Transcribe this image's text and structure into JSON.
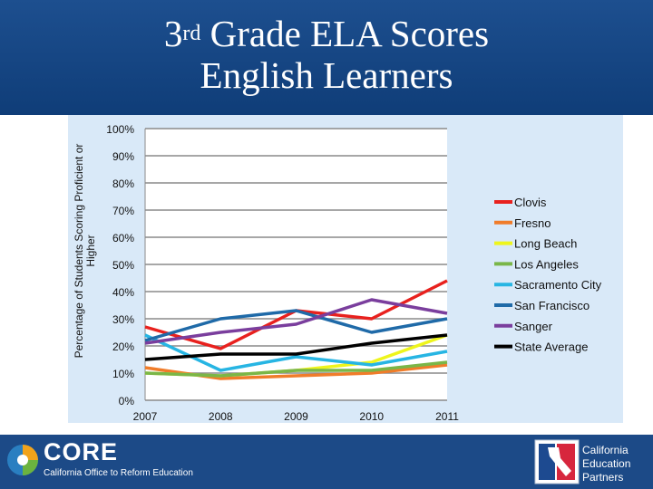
{
  "title": {
    "line1_prefix": "3",
    "line1_sup": "rd",
    "line1_suffix": " Grade ELA Scores",
    "line2": "English Learners"
  },
  "footer": {
    "core_name": "CORE",
    "core_tagline": "California Office to Reform Education",
    "partner_lines": [
      "California",
      "Education",
      "Partners"
    ]
  },
  "colors": {
    "header_bg": "#1a4a8a",
    "plot_bg": "#d9e9f8"
  },
  "chart_data": {
    "type": "line",
    "title": "3rd Grade ELA Scores English Learners",
    "xlabel": "",
    "ylabel": "Percentage of Students Scoring Proficient or Higher",
    "x": [
      "2007",
      "2008",
      "2009",
      "2010",
      "2011"
    ],
    "ylim": [
      0,
      100
    ],
    "yticks": [
      "0%",
      "10%",
      "20%",
      "30%",
      "40%",
      "50%",
      "60%",
      "70%",
      "80%",
      "90%",
      "100%"
    ],
    "grid": true,
    "legend": "right",
    "series": [
      {
        "name": "Clovis",
        "color": "#e8211e",
        "values": [
          27,
          19,
          33,
          30,
          44
        ]
      },
      {
        "name": "Fresno",
        "color": "#f07c2a",
        "values": [
          12,
          8,
          9,
          10,
          13
        ]
      },
      {
        "name": "Long Beach",
        "color": "#eef51c",
        "values": [
          10,
          9,
          11,
          14,
          24
        ]
      },
      {
        "name": "Los Angeles",
        "color": "#7ab648",
        "values": [
          10,
          9,
          11,
          11,
          14
        ]
      },
      {
        "name": "Sacramento City",
        "color": "#27b5e3",
        "values": [
          24,
          11,
          16,
          13,
          18
        ]
      },
      {
        "name": "San Francisco",
        "color": "#1f6aa8",
        "values": [
          22,
          30,
          33,
          25,
          30
        ]
      },
      {
        "name": "Sanger",
        "color": "#7a3e9d",
        "values": [
          21,
          25,
          28,
          37,
          32
        ]
      },
      {
        "name": "State Average",
        "color": "#000000",
        "values": [
          15,
          17,
          17,
          21,
          24
        ]
      }
    ]
  }
}
